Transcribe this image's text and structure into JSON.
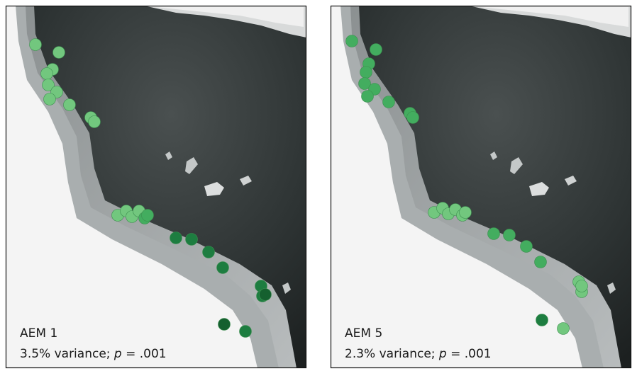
{
  "panels": [
    {
      "title": "AEM 1",
      "variance": "3.5% variance;",
      "p_symbol": "p",
      "p_value": "= .001"
    },
    {
      "title": "AEM 5",
      "variance": "2.3% variance;",
      "p_symbol": "p",
      "p_value": "= .001"
    }
  ]
}
